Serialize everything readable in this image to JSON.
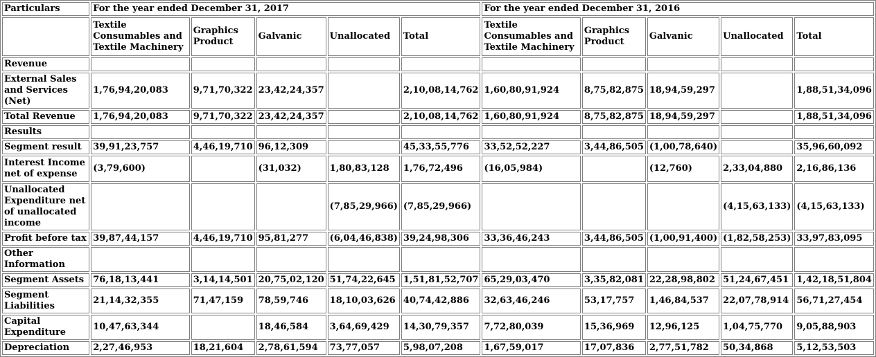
{
  "header": {
    "particulars": "Particulars",
    "year2017": "For the year ended December 31, 2017",
    "year2016": "For the year ended December 31, 2016"
  },
  "columns": {
    "textile": "Textile Consumables and Textile Machinery",
    "graphics": "Graphics Product",
    "galvanic": "Galvanic",
    "unallocated": "Unallocated",
    "total": "Total"
  },
  "rows": [
    {
      "label": "Revenue",
      "c2017": [
        "",
        "",
        "",
        "",
        ""
      ],
      "c2016": [
        "",
        "",
        "",
        "",
        ""
      ]
    },
    {
      "label": "External Sales and Services (Net)",
      "c2017": [
        "1,76,94,20,083",
        "9,71,70,322",
        "23,42,24,357",
        "",
        "2,10,08,14,762"
      ],
      "c2016": [
        "1,60,80,91,924",
        "8,75,82,875",
        "18,94,59,297",
        "",
        "1,88,51,34,096"
      ]
    },
    {
      "label": "Total Revenue",
      "c2017": [
        "1,76,94,20,083",
        "9,71,70,322",
        "23,42,24,357",
        "",
        "2,10,08,14,762"
      ],
      "c2016": [
        "1,60,80,91,924",
        "8,75,82,875",
        "18,94,59,297",
        "",
        "1,88,51,34,096"
      ]
    },
    {
      "label": "Results",
      "c2017": [
        "",
        "",
        "",
        "",
        ""
      ],
      "c2016": [
        "",
        "",
        "",
        "",
        ""
      ]
    },
    {
      "label": "Segment result",
      "c2017": [
        "39,91,23,757",
        "4,46,19,710",
        "96,12,309",
        "",
        "45,33,55,776"
      ],
      "c2016": [
        "33,52,52,227",
        "3,44,86,505",
        "(1,00,78,640)",
        "",
        "35,96,60,092"
      ]
    },
    {
      "label": "Interest Income net of expense",
      "c2017": [
        "(3,79,600)",
        "",
        "(31,032)",
        "1,80,83,128",
        "1,76,72,496"
      ],
      "c2016": [
        "(16,05,984)",
        "",
        "(12,760)",
        "2,33,04,880",
        "2,16,86,136"
      ]
    },
    {
      "label": "Unallocated Expenditure net of unallocated income",
      "c2017": [
        "",
        "",
        "",
        "(7,85,29,966)",
        "(7,85,29,966)"
      ],
      "c2016": [
        "",
        "",
        "",
        "(4,15,63,133)",
        "(4,15,63,133)"
      ]
    },
    {
      "label": "Profit before tax",
      "c2017": [
        "39,87,44,157",
        "4,46,19,710",
        "95,81,277",
        "(6,04,46,838)",
        "39,24,98,306"
      ],
      "c2016": [
        "33,36,46,243",
        "3,44,86,505",
        "(1,00,91,400)",
        "(1,82,58,253)",
        "33,97,83,095"
      ]
    },
    {
      "label": "Other Information",
      "c2017": [
        "",
        "",
        "",
        "",
        ""
      ],
      "c2016": [
        "",
        "",
        "",
        "",
        ""
      ]
    },
    {
      "label": "Segment Assets",
      "c2017": [
        "76,18,13,441",
        "3,14,14,501",
        "20,75,02,120",
        "51,74,22,645",
        "1,51,81,52,707"
      ],
      "c2016": [
        "65,29,03,470",
        "3,35,82,081",
        "22,28,98,802",
        "51,24,67,451",
        "1,42,18,51,804"
      ]
    },
    {
      "label": "Segment Liabilities",
      "c2017": [
        "21,14,32,355",
        "71,47,159",
        "78,59,746",
        "18,10,03,626",
        "40,74,42,886"
      ],
      "c2016": [
        "32,63,46,246",
        "53,17,757",
        "1,46,84,537",
        "22,07,78,914",
        "56,71,27,454"
      ]
    },
    {
      "label": "Capital Expenditure",
      "c2017": [
        "10,47,63,344",
        "",
        "18,46,584",
        "3,64,69,429",
        "14,30,79,357"
      ],
      "c2016": [
        "7,72,80,039",
        "15,36,969",
        "12,96,125",
        "1,04,75,770",
        "9,05,88,903"
      ]
    },
    {
      "label": "Depreciation",
      "c2017": [
        "2,27,46,953",
        "18,21,604",
        "2,78,61,594",
        "73,77,057",
        "5,98,07,208"
      ],
      "c2016": [
        "1,67,59,017",
        "17,07,836",
        "2,77,51,782",
        "50,34,868",
        "5,12,53,503"
      ]
    }
  ]
}
